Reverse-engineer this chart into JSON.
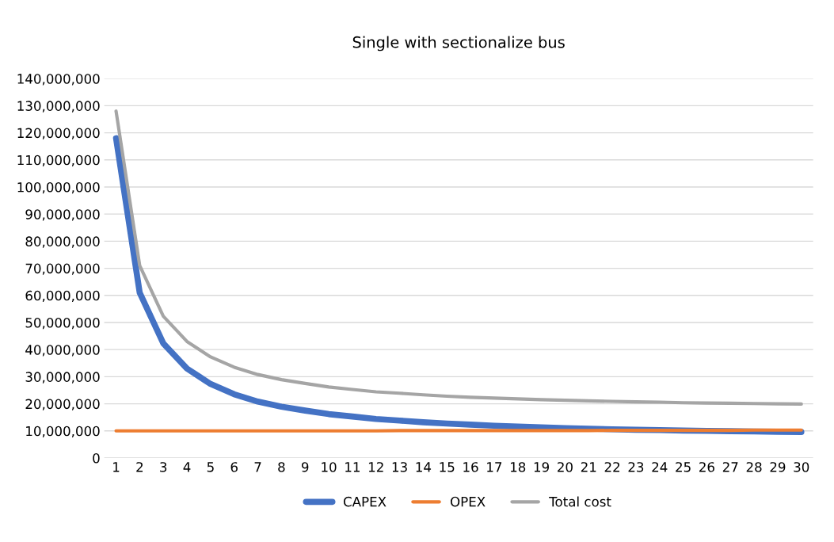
{
  "chart_data": {
    "type": "line",
    "title": "Single with sectionalize bus",
    "categories": [
      "1",
      "2",
      "3",
      "4",
      "5",
      "6",
      "7",
      "8",
      "9",
      "10",
      "11",
      "12",
      "13",
      "14",
      "15",
      "16",
      "17",
      "18",
      "19",
      "20",
      "21",
      "22",
      "23",
      "24",
      "25",
      "26",
      "27",
      "28",
      "29",
      "30"
    ],
    "series": [
      {
        "name": "CAPEX",
        "color": "#4472c4",
        "values": [
          118000000,
          61000000,
          42300000,
          33000000,
          27300000,
          23500000,
          20800000,
          18900000,
          17500000,
          16200000,
          15300000,
          14400000,
          13800000,
          13200000,
          12700000,
          12300000,
          11900000,
          11600000,
          11300000,
          11000000,
          10800000,
          10600000,
          10400000,
          10300000,
          10100000,
          10000000,
          9900000,
          9800000,
          9700000,
          9600000
        ]
      },
      {
        "name": "OPEX",
        "color": "#ed7d31",
        "values": [
          10000000,
          10000000,
          10000000,
          10000000,
          10000000,
          10000000,
          10000000,
          10000000,
          10000000,
          10000000,
          10000000,
          10000000,
          10100000,
          10100000,
          10100000,
          10100000,
          10100000,
          10100000,
          10100000,
          10100000,
          10100000,
          10200000,
          10200000,
          10200000,
          10200000,
          10200000,
          10200000,
          10300000,
          10300000,
          10300000
        ]
      },
      {
        "name": "Total cost",
        "color": "#a5a5a5",
        "values": [
          128000000,
          71000000,
          52300000,
          43000000,
          37300000,
          33500000,
          30800000,
          28900000,
          27500000,
          26200000,
          25300000,
          24400000,
          23900000,
          23300000,
          22800000,
          22400000,
          22100000,
          21800000,
          21500000,
          21300000,
          21100000,
          20900000,
          20700000,
          20600000,
          20400000,
          20300000,
          20200000,
          20100000,
          20000000,
          19900000
        ]
      }
    ],
    "ylim": [
      0,
      140000000
    ],
    "yticks": [
      {
        "value": 0,
        "label": "0"
      },
      {
        "value": 10000000,
        "label": "10,000,000"
      },
      {
        "value": 20000000,
        "label": "20,000,000"
      },
      {
        "value": 30000000,
        "label": "30,000,000"
      },
      {
        "value": 40000000,
        "label": "40,000,000"
      },
      {
        "value": 50000000,
        "label": "50,000,000"
      },
      {
        "value": 60000000,
        "label": "60,000,000"
      },
      {
        "value": 70000000,
        "label": "70,000,000"
      },
      {
        "value": 80000000,
        "label": "80,000,000"
      },
      {
        "value": 90000000,
        "label": "90,000,000"
      },
      {
        "value": 100000000,
        "label": "100,000,000"
      },
      {
        "value": 110000000,
        "label": "110,000,000"
      },
      {
        "value": 120000000,
        "label": "120,000,000"
      },
      {
        "value": 130000000,
        "label": "130,000,000"
      },
      {
        "value": 140000000,
        "label": "140,000,000"
      }
    ],
    "grid": "y",
    "legend": "bottom",
    "marker": "none",
    "line_style": "solid"
  }
}
